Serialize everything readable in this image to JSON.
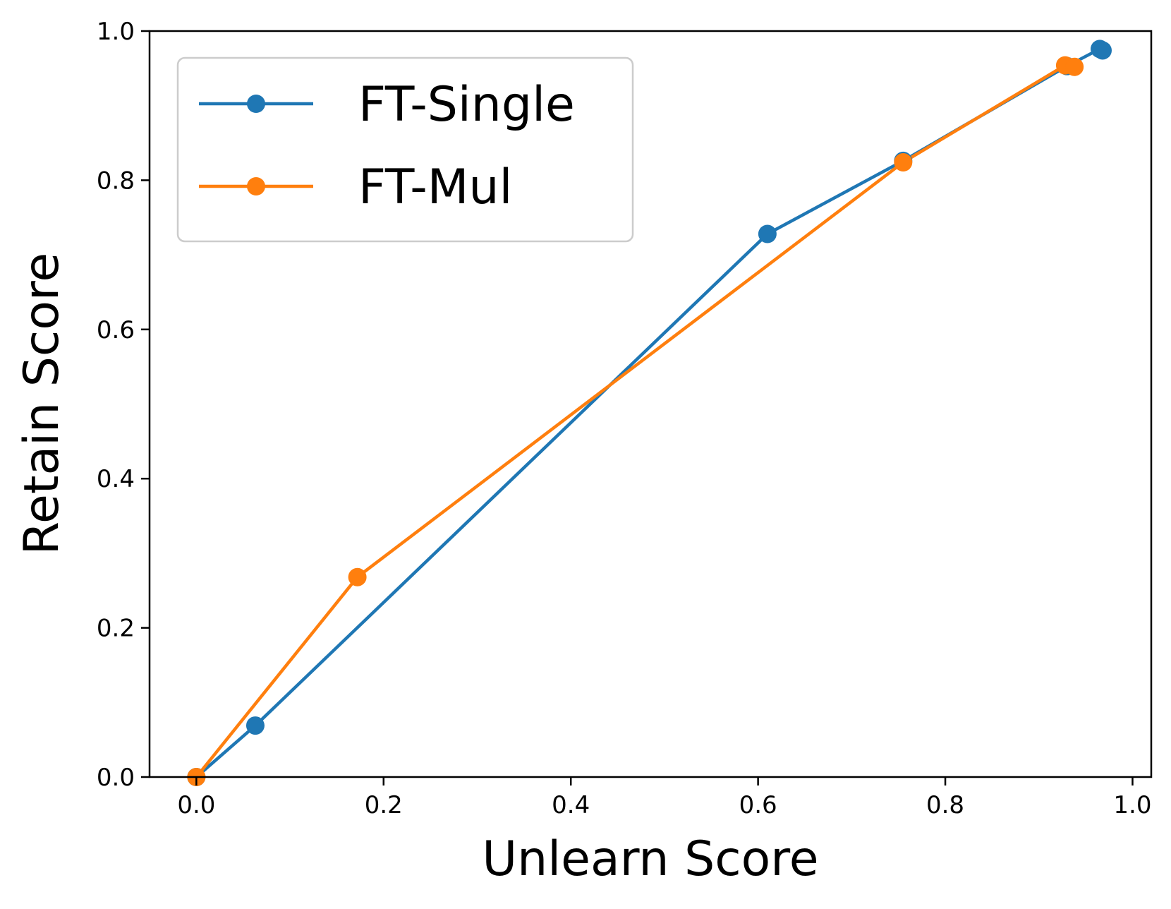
{
  "chart_data": {
    "type": "line",
    "title": "",
    "xlabel": "Unlearn Score",
    "ylabel": "Retain Score",
    "xlim": [
      -0.05,
      1.02
    ],
    "ylim": [
      0.0,
      1.0
    ],
    "xticks": [
      0.0,
      0.2,
      0.4,
      0.6,
      0.8,
      1.0
    ],
    "yticks": [
      0.0,
      0.2,
      0.4,
      0.6,
      0.8,
      1.0
    ],
    "xtick_labels": [
      "0.0",
      "0.2",
      "0.4",
      "0.6",
      "0.8",
      "1.0"
    ],
    "ytick_labels": [
      "0.0",
      "0.2",
      "0.4",
      "0.6",
      "0.8",
      "1.0"
    ],
    "grid": false,
    "legend": {
      "position": "top-left"
    },
    "series": [
      {
        "name": "FT-Single",
        "color": "#1f77b4",
        "marker": "circle",
        "x": [
          0.0,
          0.063,
          0.61,
          0.755,
          0.93,
          0.965,
          0.968
        ],
        "y": [
          0.0,
          0.069,
          0.728,
          0.826,
          0.953,
          0.976,
          0.974
        ]
      },
      {
        "name": "FT-Mul",
        "color": "#ff7f0e",
        "marker": "circle",
        "x": [
          0.0,
          0.172,
          0.755,
          0.928,
          0.938
        ],
        "y": [
          0.0,
          0.268,
          0.824,
          0.954,
          0.952
        ]
      }
    ]
  }
}
